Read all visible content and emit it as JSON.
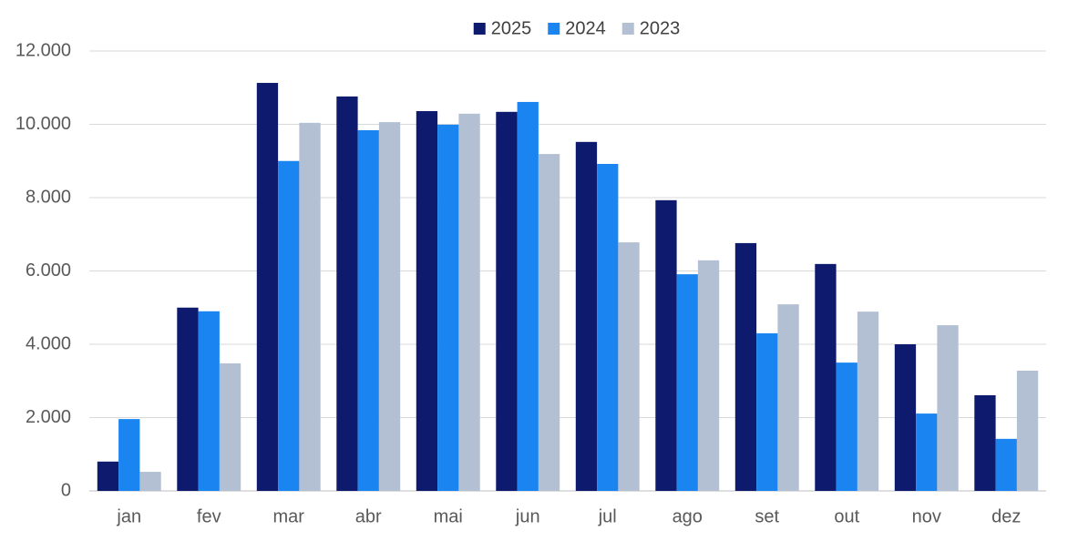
{
  "chart_data": {
    "type": "bar",
    "categories": [
      "jan",
      "fev",
      "mar",
      "abr",
      "mai",
      "jun",
      "jul",
      "ago",
      "set",
      "out",
      "nov",
      "dez"
    ],
    "series": [
      {
        "name": "2025",
        "color": "#0e1a6e",
        "values": [
          800,
          5000,
          11130,
          10760,
          10360,
          10340,
          9520,
          7930,
          6760,
          6190,
          4000,
          2610
        ]
      },
      {
        "name": "2024",
        "color": "#1a85f0",
        "values": [
          1960,
          4900,
          9000,
          9840,
          9990,
          10610,
          8920,
          5910,
          4300,
          3500,
          2110,
          1420
        ]
      },
      {
        "name": "2023",
        "color": "#b3bfd3",
        "values": [
          520,
          3480,
          10040,
          10060,
          10290,
          9190,
          6780,
          6290,
          5090,
          4890,
          4520,
          3280
        ]
      }
    ],
    "ylim": [
      0,
      12000
    ],
    "yticks": [
      0,
      {
        "value": 2000,
        "label": "2.000"
      },
      {
        "value": 4000,
        "label": "4.000"
      },
      {
        "value": 6000,
        "label": "6.000"
      },
      {
        "value": 8000,
        "label": "8.000"
      },
      {
        "value": 10000,
        "label": "10.000"
      },
      {
        "value": 12000,
        "label": "12.000"
      }
    ],
    "grid": true,
    "legend": "top"
  }
}
